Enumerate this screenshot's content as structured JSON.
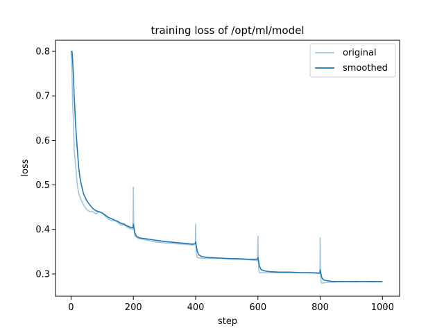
{
  "chart_data": {
    "type": "line",
    "title": "training loss of /opt/ml/model",
    "xlabel": "step",
    "ylabel": "loss",
    "xlim": [
      -50,
      1055
    ],
    "ylim": [
      0.25,
      0.825
    ],
    "xticks": [
      0,
      200,
      400,
      600,
      800,
      1000
    ],
    "yticks": [
      0.3,
      0.4,
      0.5,
      0.6,
      0.7,
      0.8
    ],
    "legend": {
      "placement": "top-right"
    },
    "grid": false,
    "series": [
      {
        "name": "original",
        "color": "#9fc5e0",
        "x": [
          0,
          3,
          5,
          8,
          10,
          15,
          20,
          25,
          30,
          40,
          50,
          60,
          70,
          80,
          90,
          100,
          110,
          120,
          130,
          140,
          150,
          160,
          170,
          180,
          190,
          199,
          200,
          201,
          203,
          205,
          215,
          230,
          250,
          270,
          300,
          330,
          360,
          390,
          399,
          400,
          401,
          403,
          405,
          420,
          450,
          480,
          510,
          540,
          570,
          599,
          600,
          601,
          603,
          605,
          620,
          650,
          680,
          710,
          740,
          770,
          799,
          800,
          801,
          803,
          805,
          820,
          850,
          880,
          910,
          940,
          970,
          1000
        ],
        "values": [
          0.8,
          0.75,
          0.68,
          0.64,
          0.58,
          0.54,
          0.5,
          0.48,
          0.47,
          0.455,
          0.445,
          0.44,
          0.44,
          0.435,
          0.44,
          0.437,
          0.43,
          0.423,
          0.42,
          0.42,
          0.415,
          0.41,
          0.41,
          0.405,
          0.402,
          0.4,
          0.495,
          0.41,
          0.395,
          0.385,
          0.38,
          0.378,
          0.375,
          0.372,
          0.37,
          0.368,
          0.367,
          0.365,
          0.367,
          0.412,
          0.36,
          0.345,
          0.337,
          0.335,
          0.335,
          0.335,
          0.333,
          0.333,
          0.332,
          0.33,
          0.385,
          0.33,
          0.307,
          0.303,
          0.303,
          0.303,
          0.303,
          0.303,
          0.303,
          0.302,
          0.301,
          0.381,
          0.3,
          0.282,
          0.279,
          0.281,
          0.282,
          0.283,
          0.282,
          0.283,
          0.282,
          0.283
        ]
      },
      {
        "name": "smoothed",
        "color": "#1f77b4",
        "x": [
          0,
          3,
          5,
          8,
          10,
          15,
          20,
          25,
          30,
          40,
          50,
          60,
          70,
          80,
          90,
          100,
          110,
          120,
          130,
          140,
          150,
          160,
          170,
          180,
          190,
          199,
          200,
          205,
          210,
          220,
          240,
          260,
          280,
          300,
          330,
          360,
          390,
          399,
          400,
          405,
          410,
          420,
          440,
          470,
          500,
          540,
          570,
          599,
          600,
          605,
          610,
          620,
          640,
          670,
          700,
          740,
          770,
          799,
          800,
          805,
          810,
          820,
          840,
          870,
          900,
          940,
          970,
          1000
        ],
        "values": [
          0.8,
          0.8,
          0.78,
          0.74,
          0.7,
          0.63,
          0.58,
          0.535,
          0.51,
          0.48,
          0.465,
          0.455,
          0.447,
          0.442,
          0.44,
          0.437,
          0.432,
          0.427,
          0.424,
          0.421,
          0.418,
          0.414,
          0.412,
          0.408,
          0.405,
          0.404,
          0.412,
          0.392,
          0.385,
          0.381,
          0.379,
          0.377,
          0.375,
          0.373,
          0.371,
          0.369,
          0.367,
          0.368,
          0.372,
          0.352,
          0.343,
          0.339,
          0.337,
          0.336,
          0.335,
          0.334,
          0.333,
          0.333,
          0.337,
          0.318,
          0.31,
          0.307,
          0.305,
          0.304,
          0.304,
          0.303,
          0.303,
          0.302,
          0.309,
          0.292,
          0.287,
          0.285,
          0.283,
          0.283,
          0.283,
          0.283,
          0.283,
          0.283
        ]
      }
    ]
  }
}
